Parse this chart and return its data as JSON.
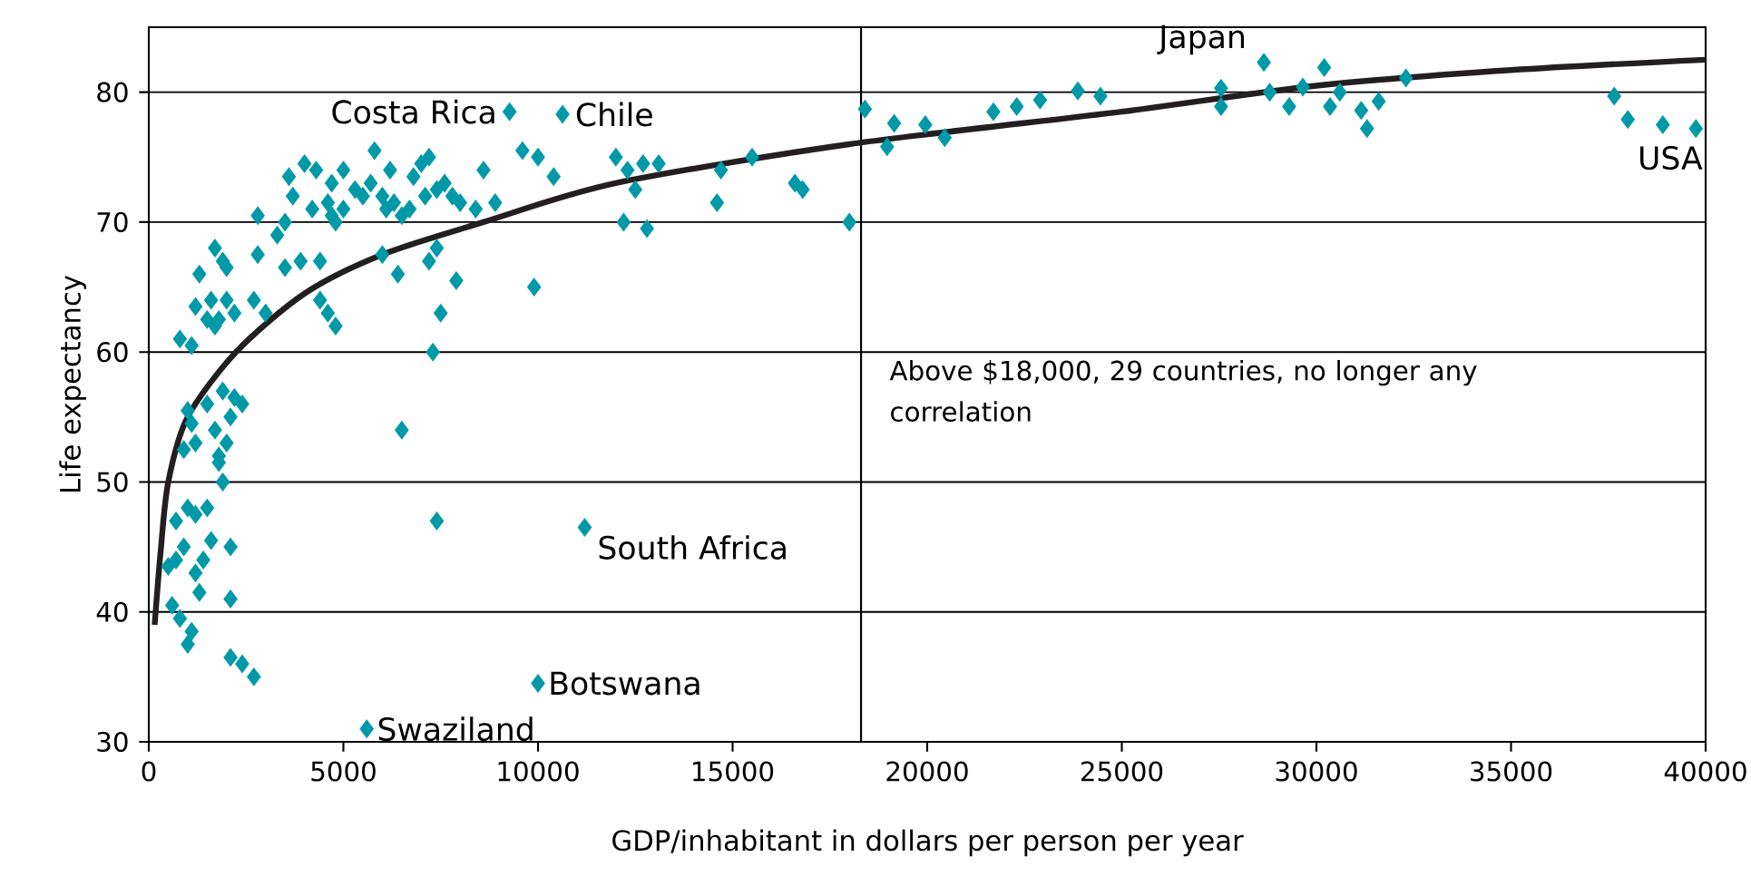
{
  "chart_data": {
    "type": "scatter",
    "xlabel": "GDP/inhabitant in dollars per person per year",
    "ylabel": "Life expectancy",
    "xlim": [
      0,
      40000
    ],
    "ylim": [
      30,
      85
    ],
    "xticks": [
      0,
      5000,
      10000,
      15000,
      20000,
      25000,
      30000,
      35000,
      40000
    ],
    "yticks": [
      30,
      40,
      50,
      60,
      70,
      80
    ],
    "grid": "y",
    "ref_lines": [
      {
        "axis": "x",
        "value": 18300,
        "color": "#000000"
      }
    ],
    "annotations": [
      "Above $18,000, 29 countries, no longer any correlation",
      {
        "text": "Costa Rica",
        "x": 9270,
        "y": 78.5
      },
      {
        "text": "Chile",
        "x": 10630,
        "y": 78.3
      },
      {
        "text": "Japan",
        "x": 28650,
        "y": 82.3
      },
      {
        "text": "USA",
        "x": 39750,
        "y": 77.2
      },
      {
        "text": "South Africa",
        "x": 11200,
        "y": 46.5
      },
      {
        "text": "Botswana",
        "x": 10000,
        "y": 34.5
      },
      {
        "text": "Swaziland",
        "x": 5600,
        "y": 31
      }
    ],
    "series": [
      {
        "color": "#0099a8",
        "marker": "diamond",
        "x": [
          500,
          600,
          700,
          800,
          900,
          1000,
          1100,
          700,
          1000,
          1200,
          1500,
          1400,
          1200,
          1600,
          2100,
          1300,
          2100,
          2100,
          2400,
          2700,
          900,
          1000,
          1100,
          1200,
          1500,
          1700,
          1800,
          2000,
          2100,
          1900,
          2200,
          2400,
          1900,
          1800,
          800,
          1100,
          1200,
          1500,
          1600,
          1700,
          1800,
          2000,
          2200,
          1300,
          1700,
          1900,
          2000,
          2700,
          3000,
          2800,
          2800,
          3300,
          3500,
          3600,
          4000,
          4300,
          3900,
          4400,
          4200,
          4600,
          4700,
          4800,
          5000,
          4600,
          4800,
          4400,
          3500,
          3700,
          5300,
          5500,
          5700,
          6000,
          6100,
          6300,
          6200,
          5800,
          5000,
          4700,
          6800,
          7000,
          7200,
          6500,
          6700,
          7100,
          7400,
          7600,
          7800,
          8000,
          8400,
          6000,
          6400,
          7400,
          7200,
          7500,
          7900,
          7300,
          6500,
          7400,
          5600,
          10000,
          11200,
          9900,
          10000,
          9600,
          10400,
          9270,
          10630,
          12000,
          12300,
          12500,
          12200,
          12800,
          12700,
          13100,
          14700,
          14600,
          15500,
          16600,
          16800,
          18000,
          8900,
          8600,
          18400,
          19150,
          18970,
          19950,
          20450,
          21700,
          22300,
          22900,
          23870,
          24450,
          27550,
          27550,
          28650,
          28800,
          29300,
          29650,
          30200,
          30350,
          30600,
          31150,
          31300,
          31600,
          32300,
          37650,
          38000,
          38900,
          39750
        ],
        "values": [
          43.5,
          40.5,
          44,
          39.5,
          45,
          37.5,
          38.5,
          47,
          48,
          47.5,
          48,
          44,
          43,
          45.5,
          45,
          41.5,
          41,
          36.5,
          36,
          35,
          52.5,
          55.5,
          54.5,
          53,
          56,
          54,
          52,
          53,
          55,
          57,
          56.5,
          56,
          50,
          51.5,
          61,
          60.5,
          63.5,
          62.5,
          64,
          62,
          62.5,
          64,
          63,
          66,
          68,
          67,
          66.5,
          64,
          63,
          67.5,
          70.5,
          69,
          70,
          73.5,
          74.5,
          74,
          67,
          67,
          71,
          71.5,
          70.5,
          70,
          71,
          63,
          62,
          64,
          66.5,
          72,
          72.5,
          72,
          73,
          72,
          71,
          71.5,
          74,
          75.5,
          74,
          73,
          73.5,
          74.5,
          75,
          70.5,
          71,
          72,
          72.5,
          73,
          72,
          71.5,
          71,
          67.5,
          66,
          68,
          67,
          63,
          65.5,
          60,
          54,
          47,
          31,
          34.5,
          46.5,
          65,
          75,
          75.5,
          73.5,
          78.5,
          78.3,
          75,
          74,
          72.5,
          70,
          69.5,
          74.5,
          74.5,
          74,
          71.5,
          75,
          73,
          72.5,
          70,
          71.5,
          74,
          78.7,
          77.6,
          75.8,
          77.5,
          76.5,
          78.5,
          78.9,
          79.4,
          80.1,
          79.7,
          80.3,
          78.9,
          82.3,
          80,
          78.9,
          80.4,
          81.9,
          78.9,
          80,
          78.6,
          77.2,
          79.3,
          81.1,
          79.7,
          77.9,
          77.5,
          77.2
        ]
      },
      {
        "type": "line",
        "color": "#231f20",
        "x": [
          150,
          300,
          500,
          1000,
          2240,
          4000,
          6000,
          8600,
          12000,
          18000,
          25000,
          30000,
          35000,
          40000
        ],
        "values": [
          39,
          44.5,
          50,
          55,
          60,
          64.5,
          67.5,
          70,
          73,
          76,
          78.5,
          80.5,
          81.7,
          82.5
        ]
      }
    ]
  }
}
